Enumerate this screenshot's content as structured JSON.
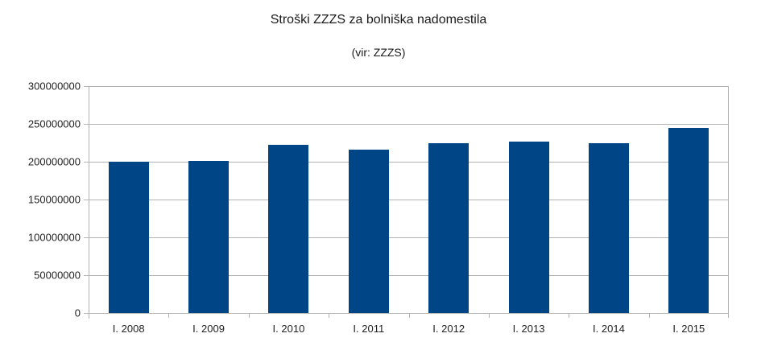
{
  "chart": {
    "title": "Stroški ZZZS za bolniška nadomestila",
    "subtitle": "(vir: ZZZS)",
    "bar_color": "#004586",
    "grid_color": "#b3b3b3"
  },
  "chart_data": {
    "type": "bar",
    "title": "Stroški ZZZS za bolniška nadomestila",
    "subtitle": "(vir: ZZZS)",
    "xlabel": "",
    "ylabel": "",
    "categories": [
      "I. 2008",
      "I. 2009",
      "I. 2010",
      "I. 2011",
      "I. 2012",
      "I. 2013",
      "I. 2014",
      "I. 2015"
    ],
    "values": [
      200000000,
      201000000,
      222000000,
      216000000,
      225000000,
      227000000,
      225000000,
      245000000
    ],
    "ylim": [
      0,
      300000000
    ],
    "yticks": [
      "0",
      "50000000",
      "100000000",
      "150000000",
      "200000000",
      "250000000",
      "300000000"
    ],
    "grid": true,
    "legend": null
  }
}
